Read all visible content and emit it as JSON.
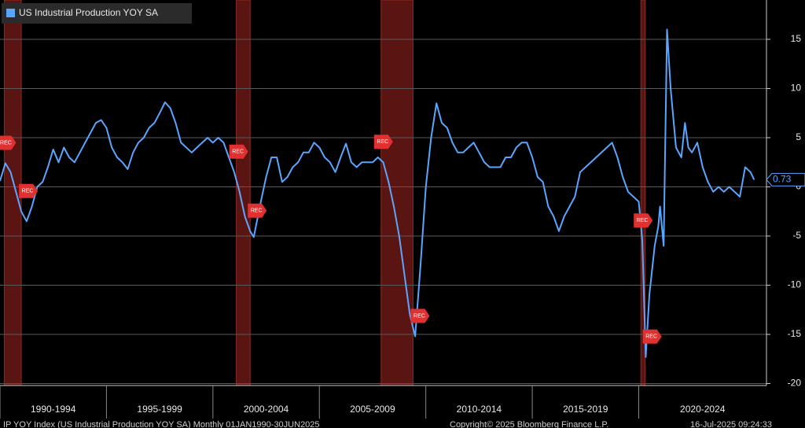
{
  "chart_data": {
    "type": "line",
    "legend_title": "US Industrial Production YOY SA",
    "x": [
      1990.0,
      1990.25,
      1990.5,
      1990.75,
      1991.0,
      1991.25,
      1991.5,
      1991.75,
      1992.0,
      1992.25,
      1992.5,
      1992.75,
      1993.0,
      1993.25,
      1993.5,
      1993.75,
      1994.0,
      1994.25,
      1994.5,
      1994.75,
      1995.0,
      1995.25,
      1995.5,
      1995.75,
      1996.0,
      1996.25,
      1996.5,
      1996.75,
      1997.0,
      1997.25,
      1997.5,
      1997.75,
      1998.0,
      1998.25,
      1998.5,
      1998.75,
      1999.0,
      1999.25,
      1999.5,
      1999.75,
      2000.0,
      2000.25,
      2000.5,
      2000.75,
      2001.0,
      2001.25,
      2001.5,
      2001.75,
      2001.92,
      2002.25,
      2002.5,
      2002.75,
      2003.0,
      2003.25,
      2003.5,
      2003.75,
      2004.0,
      2004.25,
      2004.5,
      2004.75,
      2005.0,
      2005.25,
      2005.5,
      2005.75,
      2006.0,
      2006.25,
      2006.5,
      2006.75,
      2007.0,
      2007.25,
      2007.5,
      2007.75,
      2008.0,
      2008.25,
      2008.5,
      2008.75,
      2009.0,
      2009.25,
      2009.5,
      2009.75,
      2010.0,
      2010.25,
      2010.5,
      2010.75,
      2011.0,
      2011.25,
      2011.5,
      2011.75,
      2012.0,
      2012.25,
      2012.5,
      2012.75,
      2013.0,
      2013.25,
      2013.5,
      2013.75,
      2014.0,
      2014.25,
      2014.5,
      2014.75,
      2015.0,
      2015.25,
      2015.5,
      2015.75,
      2016.0,
      2016.25,
      2016.5,
      2016.75,
      2017.0,
      2017.25,
      2017.5,
      2017.75,
      2018.0,
      2018.25,
      2018.5,
      2018.75,
      2019.0,
      2019.25,
      2019.5,
      2019.75,
      2020.0,
      2020.17,
      2020.33,
      2020.5,
      2020.75,
      2020.92,
      2021.0,
      2021.17,
      2021.33,
      2021.5,
      2021.75,
      2022.0,
      2022.17,
      2022.33,
      2022.5,
      2022.75,
      2023.0,
      2023.25,
      2023.5,
      2023.75,
      2024.0,
      2024.25,
      2024.5,
      2024.75,
      2025.0,
      2025.25,
      2025.42
    ],
    "series": [
      {
        "name": "US Industrial Production YOY SA",
        "color": "#5aa6ff",
        "values": [
          0.6,
          2.4,
          1.5,
          -0.5,
          -2.5,
          -3.5,
          -2,
          0,
          0.5,
          2,
          3.8,
          2.5,
          4,
          3,
          2.5,
          3.5,
          4.5,
          5.5,
          6.5,
          6.8,
          6,
          4,
          3,
          2.5,
          1.8,
          3.5,
          4.5,
          5,
          6,
          6.5,
          7.5,
          8.6,
          8,
          6.5,
          4.5,
          4,
          3.5,
          4,
          4.5,
          5,
          4.5,
          5,
          4.5,
          3,
          1.5,
          -0.5,
          -3,
          -4.5,
          -5.1,
          -1.5,
          1,
          3,
          3,
          0.5,
          1,
          2,
          2.5,
          3.5,
          3.5,
          4.5,
          4,
          3,
          2.5,
          1.5,
          3,
          4.4,
          2.5,
          2,
          2.5,
          2.5,
          2.5,
          3,
          2.5,
          0.5,
          -2,
          -5,
          -9,
          -13,
          -15.2,
          -8,
          0,
          5,
          8.5,
          6.5,
          6,
          4.5,
          3.5,
          3.5,
          4,
          4.5,
          3.5,
          2.5,
          2,
          2,
          2,
          3,
          3,
          4,
          4.5,
          4.5,
          3,
          1,
          0.5,
          -2,
          -3,
          -4.5,
          -3,
          -2,
          -1,
          1.5,
          2,
          2.5,
          3,
          3.5,
          4,
          4.5,
          3,
          1,
          -0.5,
          -1,
          -1.5,
          -5.5,
          -17.3,
          -11,
          -6,
          -4,
          -2,
          -6,
          16,
          10,
          4,
          3,
          6.5,
          4,
          3.5,
          4.5,
          2,
          0.5,
          -0.5,
          0,
          -0.5,
          0,
          -0.5,
          -1,
          2,
          1.5,
          0.73
        ]
      }
    ],
    "recessions": [
      [
        1990.2,
        1991.0
      ],
      [
        2001.1,
        2001.75
      ],
      [
        2007.9,
        2009.4
      ],
      [
        2020.1,
        2020.3
      ]
    ],
    "recession_label": "REC",
    "xlim": [
      1990,
      2026
    ],
    "xticks": [
      {
        "value": 1990,
        "label": "1990-1994"
      },
      {
        "value": 1995,
        "label": "1995-1999"
      },
      {
        "value": 2000,
        "label": "2000-2004"
      },
      {
        "value": 2005,
        "label": "2005-2009"
      },
      {
        "value": 2010,
        "label": "2010-2014"
      },
      {
        "value": 2015,
        "label": "2015-2019"
      },
      {
        "value": 2020,
        "label": "2020-2024"
      }
    ],
    "ylim": [
      -20.2,
      19
    ],
    "yticks": [
      15,
      10,
      5,
      0,
      -5,
      -10,
      -15,
      -20
    ],
    "grid": true,
    "footer": [
      "IP YOY Index (US Industrial Production YOY SA) Monthly 01JAN1990-30JUN2025",
      "Copyright© 2025 Bloomberg Finance L.P.",
      "16-Jul-2025 09:24:33"
    ]
  }
}
